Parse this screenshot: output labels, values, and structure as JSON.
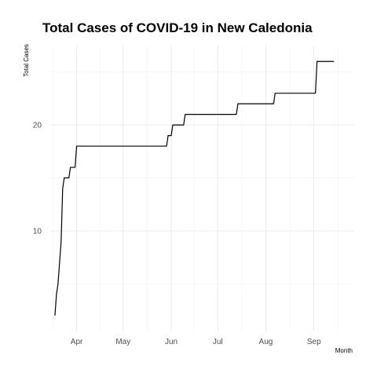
{
  "chart_data": {
    "type": "line",
    "title": "Total Cases of COVID-19 in New Caledonia",
    "xlabel": "Month",
    "ylabel": "Total Cases",
    "grid": true,
    "legend": "none",
    "line_color": "#000000",
    "xlim": [
      "2020-03-15",
      "2020-09-27"
    ],
    "ylim": [
      0.5,
      27.5
    ],
    "x_ticks": [
      {
        "date": "2020-04-01",
        "label": "Apr"
      },
      {
        "date": "2020-05-01",
        "label": "May"
      },
      {
        "date": "2020-06-01",
        "label": "Jun"
      },
      {
        "date": "2020-07-01",
        "label": "Jul"
      },
      {
        "date": "2020-08-01",
        "label": "Aug"
      },
      {
        "date": "2020-09-01",
        "label": "Sep"
      }
    ],
    "y_ticks": [
      10,
      20
    ],
    "series": [
      {
        "x": [
          "2020-03-18",
          "2020-03-19",
          "2020-03-20",
          "2020-03-21",
          "2020-03-22",
          "2020-03-23",
          "2020-03-24",
          "2020-03-25",
          "2020-03-26",
          "2020-03-27",
          "2020-03-28",
          "2020-03-29",
          "2020-03-30",
          "2020-03-31",
          "2020-04-01",
          "2020-04-02",
          "2020-05-29",
          "2020-05-30",
          "2020-05-31",
          "2020-06-01",
          "2020-06-02",
          "2020-06-03",
          "2020-06-04",
          "2020-06-05",
          "2020-06-06",
          "2020-06-07",
          "2020-06-08",
          "2020-06-09",
          "2020-06-10",
          "2020-07-13",
          "2020-07-14",
          "2020-07-15",
          "2020-08-06",
          "2020-08-07",
          "2020-08-08",
          "2020-09-02",
          "2020-09-03",
          "2020-09-04",
          "2020-09-14"
        ],
        "y": [
          2,
          4,
          5,
          7,
          9,
          14,
          15,
          15,
          15,
          15,
          16,
          16,
          16,
          16,
          18,
          18,
          18,
          19,
          19,
          19,
          20,
          20,
          20,
          20,
          20,
          20,
          20,
          20,
          21,
          21,
          22,
          22,
          22,
          23,
          23,
          23,
          26,
          26,
          26
        ]
      }
    ]
  }
}
